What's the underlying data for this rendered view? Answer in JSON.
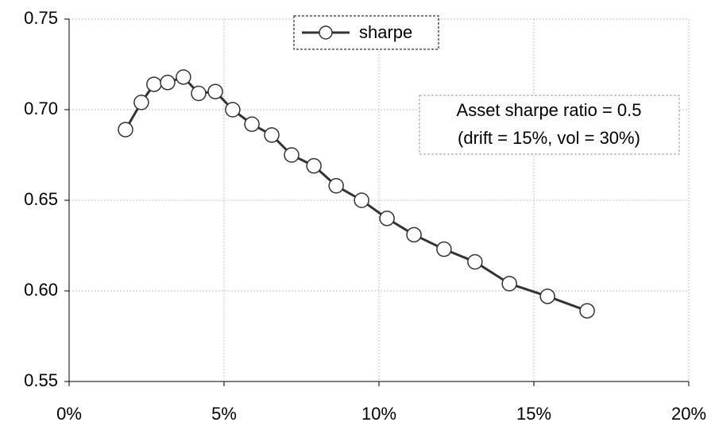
{
  "chart_data": {
    "type": "line",
    "series": [
      {
        "name": "sharpe",
        "color": "#333333",
        "x": [
          1.82,
          2.33,
          2.74,
          3.18,
          3.69,
          4.18,
          4.72,
          5.28,
          5.9,
          6.54,
          7.18,
          7.9,
          8.62,
          9.44,
          10.26,
          11.13,
          12.1,
          13.1,
          14.21,
          15.44,
          16.72
        ],
        "values": [
          0.689,
          0.704,
          0.714,
          0.715,
          0.718,
          0.709,
          0.71,
          0.7,
          0.692,
          0.686,
          0.675,
          0.669,
          0.658,
          0.65,
          0.64,
          0.631,
          0.623,
          0.616,
          0.604,
          0.597,
          0.589
        ]
      }
    ],
    "xlim": [
      0,
      20
    ],
    "xticks": [
      {
        "value": 0,
        "label": "0%"
      },
      {
        "value": 5,
        "label": "5%"
      },
      {
        "value": 10,
        "label": "10%"
      },
      {
        "value": 15,
        "label": "15%"
      },
      {
        "value": 20,
        "label": "20%"
      }
    ],
    "ylim": [
      0.55,
      0.75
    ],
    "yticks": [
      0.55,
      {
        "value": 0.6,
        "label": "0.60"
      },
      0.65,
      {
        "value": 0.7,
        "label": "0.70"
      },
      0.75
    ],
    "grid": true,
    "annotation": [
      "Asset sharpe ratio = 0.5",
      "(drift = 15%, vol = 30%)"
    ]
  }
}
